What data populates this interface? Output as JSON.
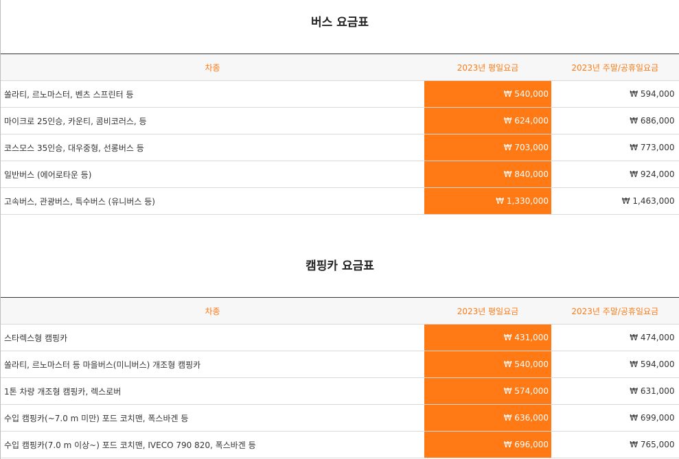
{
  "bus": {
    "title": "버스 요금표",
    "headers": {
      "vehicle": "차종",
      "weekday": "2023년 평일요금",
      "weekend": "2023년 주말/공휴일요금"
    },
    "rows": [
      {
        "vehicle": "쏠라티, 르노마스터, 벤츠 스프린터  등",
        "weekday": "₩ 540,000",
        "weekend": "₩ 594,000"
      },
      {
        "vehicle": "마이크로 25인승, 카운티, 콤비코러스,  등",
        "weekday": "₩ 624,000",
        "weekend": "₩ 686,000"
      },
      {
        "vehicle": "코스모스 35인승, 대우중형, 선롱버스 등",
        "weekday": "₩ 703,000",
        "weekend": "₩ 773,000"
      },
      {
        "vehicle": "일반버스  (에어로타운 등)",
        "weekday": "₩ 840,000",
        "weekend": "₩ 924,000"
      },
      {
        "vehicle": "고속버스, 관광버스, 특수버스   (유니버스 등)",
        "weekday": "₩ 1,330,000",
        "weekend": "₩ 1,463,000"
      }
    ]
  },
  "camping": {
    "title": "캠핑카 요금표",
    "headers": {
      "vehicle": "차종",
      "weekday": "2023년 평일요금",
      "weekend": "2023년 주말/공휴일요금"
    },
    "rows": [
      {
        "vehicle": "스타렉스형 캠핑카",
        "weekday": "₩ 431,000",
        "weekend": "₩ 474,000"
      },
      {
        "vehicle": "쏠라티, 르노마스터 등 마을버스(미니버스) 개조형 캠핑카",
        "weekday": "₩ 540,000",
        "weekend": "₩ 594,000"
      },
      {
        "vehicle": "1톤 차량 개조형 캠핑카, 렉스로버",
        "weekday": "₩ 574,000",
        "weekend": "₩ 631,000"
      },
      {
        "vehicle": "수입 캠핑카(~7.0 m 미만)   포드 코치맨, 폭스바겐 등",
        "weekday": "₩ 636,000",
        "weekend": "₩ 699,000"
      },
      {
        "vehicle": "수입 캠핑카(7.0 m 이상~)   포드 코치맨,  IVECO 790 820, 폭스바겐 등",
        "weekday": "₩ 696,000",
        "weekend": "₩ 765,000"
      }
    ]
  },
  "colors": {
    "accent": "#ff7a14",
    "header_bg": "#f7f7f7",
    "border": "#d9d9d9"
  }
}
